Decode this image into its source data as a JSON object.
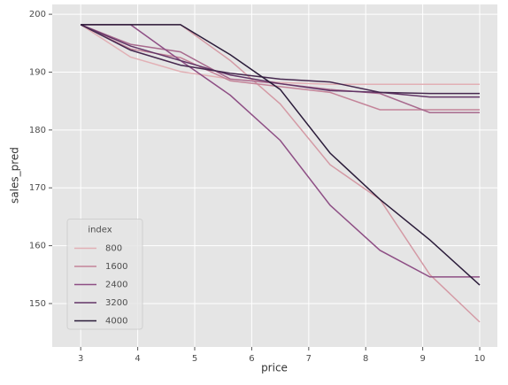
{
  "chart_data": {
    "type": "line",
    "x_label": "price",
    "y_label": "sales_pred",
    "legend_title": "index",
    "legend": "lower left",
    "grid": true,
    "x": [
      3,
      3.875,
      4.75,
      5.625,
      6.5,
      7.375,
      8.25,
      9.125,
      10
    ],
    "xlim": [
      2.5,
      10.31
    ],
    "xticks": [
      3,
      4,
      5,
      6,
      7,
      8,
      9,
      10
    ],
    "ylim": [
      142.5,
      201.7
    ],
    "yticks": [
      150,
      160,
      170,
      180,
      190,
      200
    ],
    "series": [
      {
        "name": "800",
        "color": "#e2b0b5",
        "values": [
          198.2,
          192.6,
          190.1,
          188.8,
          188.2,
          187.9,
          187.9,
          187.9,
          187.9
        ]
      },
      {
        "name": null,
        "color": "#d49aa5",
        "values": [
          198.2,
          198.2,
          198.2,
          192,
          184.5,
          174,
          168,
          155,
          146.8
        ]
      },
      {
        "name": "1600",
        "color": "#c48499",
        "values": [
          198.2,
          194,
          192.5,
          188.5,
          187.5,
          186.5,
          183.5,
          183.5,
          183.5
        ]
      },
      {
        "name": null,
        "color": "#a86a8e",
        "values": [
          198.2,
          194.8,
          193.5,
          188.8,
          188,
          187,
          186.3,
          183,
          183
        ]
      },
      {
        "name": "2400",
        "color": "#8e4f85",
        "values": [
          198.2,
          198.2,
          192,
          186,
          178.2,
          167,
          159.2,
          154.6,
          154.6
        ]
      },
      {
        "name": "3200",
        "color": "#623566",
        "values": [
          198.2,
          194.5,
          192,
          189.5,
          188,
          186.8,
          186.5,
          185.7,
          185.7
        ]
      },
      {
        "name": null,
        "color": "#46284f",
        "values": [
          198.2,
          193.8,
          191.2,
          189.8,
          188.8,
          188.3,
          186.5,
          186.3,
          186.3
        ]
      },
      {
        "name": "4000",
        "color": "#2b1c3a",
        "values": [
          198.2,
          198.2,
          198.2,
          193,
          187,
          176,
          168,
          161,
          153.2
        ]
      }
    ]
  }
}
